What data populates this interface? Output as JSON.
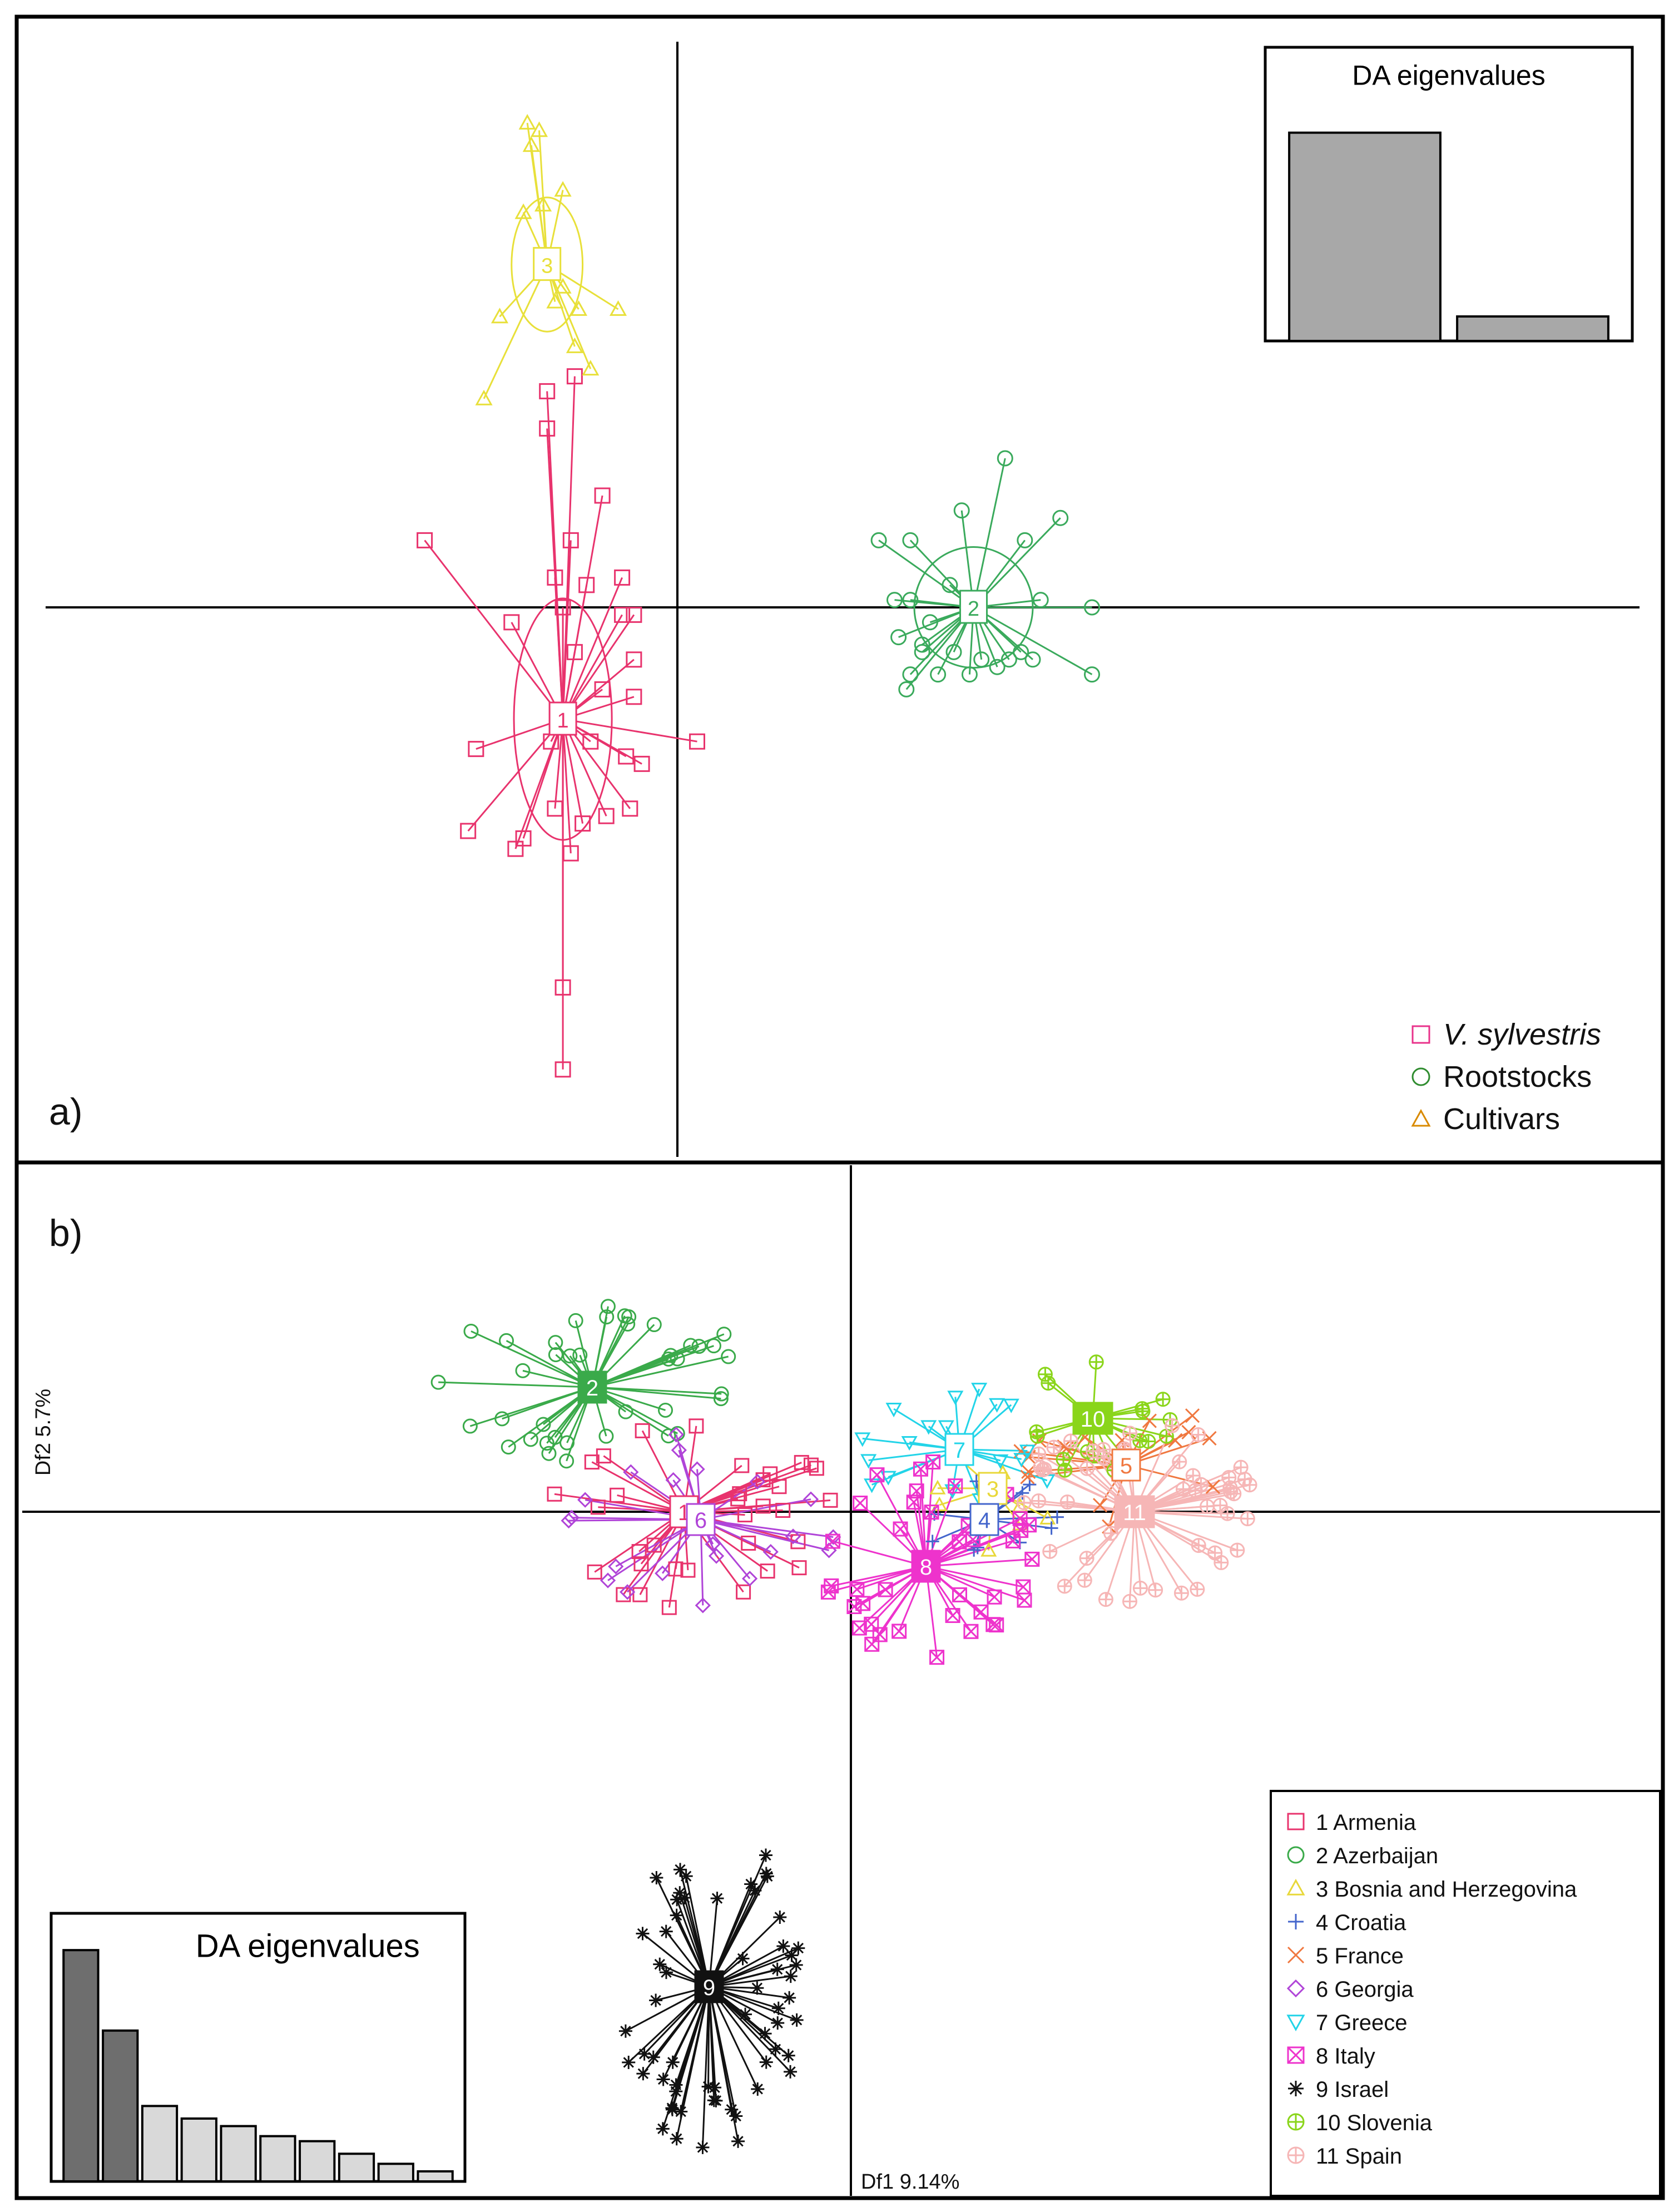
{
  "chart_data": [
    {
      "panel": "a",
      "type": "scatter",
      "panel_label": "a)",
      "xlim": [
        -5,
        5
      ],
      "ylim": [
        -4,
        4
      ],
      "groups": [
        {
          "id": 1,
          "label": "1",
          "name": "V. sylvestris",
          "marker": "square",
          "color": "#e8336d",
          "centroid": [
            -1.45,
            -0.75
          ],
          "ellipse": [
            0.62,
            0.9
          ],
          "points": [
            [
              -3.2,
              0.45
            ],
            [
              -1.65,
              1.2
            ],
            [
              -1.65,
              1.45
            ],
            [
              -1.3,
              1.55
            ],
            [
              -1.35,
              0.45
            ],
            [
              -1.55,
              0.2
            ],
            [
              -1.45,
              0.0
            ],
            [
              -1.15,
              0.15
            ],
            [
              -0.7,
              0.2
            ],
            [
              -0.7,
              -0.05
            ],
            [
              -2.1,
              -0.1
            ],
            [
              -1.3,
              -0.3
            ],
            [
              -0.95,
              -0.55
            ],
            [
              -0.55,
              -0.6
            ],
            [
              -0.55,
              -0.35
            ],
            [
              -0.55,
              -0.05
            ],
            [
              -2.55,
              -0.95
            ],
            [
              -1.6,
              -0.9
            ],
            [
              -1.1,
              -0.9
            ],
            [
              -0.65,
              -1.0
            ],
            [
              -0.45,
              -1.05
            ],
            [
              -2.65,
              -1.5
            ],
            [
              -2.05,
              -1.62
            ],
            [
              -1.55,
              -1.35
            ],
            [
              -1.2,
              -1.45
            ],
            [
              -0.9,
              -1.4
            ],
            [
              -0.6,
              -1.35
            ],
            [
              -1.35,
              -1.65
            ],
            [
              -1.45,
              -2.55
            ],
            [
              -1.45,
              -3.1
            ],
            [
              0.25,
              -0.9
            ],
            [
              -0.95,
              0.75
            ],
            [
              -1.95,
              -1.55
            ]
          ]
        },
        {
          "id": 2,
          "label": "2",
          "name": "Rootstocks",
          "marker": "circle",
          "color": "#3aaa5c",
          "centroid": [
            3.75,
            0.0
          ],
          "ellipse": [
            0.75,
            0.45
          ],
          "points": [
            [
              2.55,
              0.45
            ],
            [
              2.95,
              0.45
            ],
            [
              3.6,
              0.65
            ],
            [
              4.15,
              1.0
            ],
            [
              4.4,
              0.45
            ],
            [
              4.85,
              0.6
            ],
            [
              2.95,
              0.05
            ],
            [
              2.75,
              0.05
            ],
            [
              3.2,
              -0.1
            ],
            [
              4.6,
              0.05
            ],
            [
              5.25,
              0.0
            ],
            [
              2.8,
              -0.2
            ],
            [
              3.1,
              -0.25
            ],
            [
              3.5,
              -0.3
            ],
            [
              3.85,
              -0.35
            ],
            [
              4.35,
              -0.3
            ],
            [
              2.95,
              -0.45
            ],
            [
              3.3,
              -0.45
            ],
            [
              3.7,
              -0.45
            ],
            [
              4.05,
              -0.4
            ],
            [
              4.5,
              -0.35
            ],
            [
              5.25,
              -0.45
            ],
            [
              2.9,
              -0.55
            ],
            [
              3.1,
              -0.3
            ],
            [
              4.2,
              -0.35
            ],
            [
              3.45,
              0.15
            ]
          ]
        },
        {
          "id": 3,
          "label": "3",
          "name": "Cultivars",
          "marker": "triangle",
          "color": "#e8e03a",
          "centroid": [
            -1.65,
            2.3
          ],
          "ellipse": [
            0.45,
            0.5
          ],
          "points": [
            [
              -1.9,
              3.25
            ],
            [
              -1.85,
              3.1
            ],
            [
              -1.75,
              3.2
            ],
            [
              -1.45,
              2.8
            ],
            [
              -1.95,
              2.65
            ],
            [
              -1.7,
              2.7
            ],
            [
              -1.45,
              2.15
            ],
            [
              -1.25,
              2.0
            ],
            [
              -1.55,
              2.05
            ],
            [
              -0.75,
              2.0
            ],
            [
              -1.3,
              1.75
            ],
            [
              -1.1,
              1.6
            ],
            [
              -2.25,
              1.95
            ],
            [
              -2.45,
              1.4
            ]
          ]
        }
      ],
      "inset": {
        "title": "DA eigenvalues",
        "values": [
          0.85,
          0.1
        ]
      },
      "legend": {
        "position": "bottom-right",
        "entries": [
          {
            "label": "V. sylvestris",
            "italic": true,
            "marker": "square",
            "color": "#e8338b"
          },
          {
            "label": "Rootstocks",
            "italic": false,
            "marker": "circle",
            "color": "#2f8c2f"
          },
          {
            "label": "Cultivars",
            "italic": false,
            "marker": "triangle",
            "color": "#d98a00"
          }
        ]
      }
    },
    {
      "panel": "b",
      "type": "scatter",
      "panel_label": "b)",
      "xlabel": "Df1 9.14%",
      "ylabel": "Df2 5.7%",
      "xlim": [
        -6,
        6
      ],
      "ylim": [
        -4.5,
        2.5
      ],
      "groups": [
        {
          "id": 1,
          "label": "1",
          "name": "Armenia",
          "marker": "square",
          "color": "#e8336d",
          "box_fill": false,
          "centroid": [
            -1.0,
            0.0
          ],
          "spread": [
            0.6,
            0.45
          ],
          "n": 34
        },
        {
          "id": 2,
          "label": "2",
          "name": "Azerbaijan",
          "marker": "circle",
          "color": "#3aaa4a",
          "box_fill": true,
          "centroid": [
            -1.55,
            0.8
          ],
          "spread": [
            0.7,
            0.35
          ],
          "n": 40
        },
        {
          "id": 3,
          "label": "3",
          "name": "Bosnia and Herzegovina",
          "marker": "triangle",
          "color": "#e8d83a",
          "box_fill": false,
          "centroid": [
            0.85,
            0.15
          ],
          "spread": [
            0.25,
            0.3
          ],
          "n": 8
        },
        {
          "id": 4,
          "label": "4",
          "name": "Croatia",
          "marker": "plus",
          "color": "#4466cc",
          "box_fill": false,
          "centroid": [
            0.8,
            -0.05
          ],
          "spread": [
            0.3,
            0.25
          ],
          "n": 10
        },
        {
          "id": 5,
          "label": "5",
          "name": "France",
          "marker": "cross",
          "color": "#f07840",
          "box_fill": false,
          "centroid": [
            1.65,
            0.3
          ],
          "spread": [
            0.45,
            0.3
          ],
          "n": 18
        },
        {
          "id": 6,
          "label": "6",
          "name": "Georgia",
          "marker": "diamond",
          "color": "#b044d8",
          "box_fill": false,
          "centroid": [
            -0.9,
            -0.05
          ],
          "spread": [
            0.55,
            0.4
          ],
          "n": 22
        },
        {
          "id": 7,
          "label": "7",
          "name": "Greece",
          "marker": "down-triangle",
          "color": "#22d4e8",
          "box_fill": false,
          "centroid": [
            0.65,
            0.4
          ],
          "spread": [
            0.45,
            0.3
          ],
          "n": 18
        },
        {
          "id": 8,
          "label": "8",
          "name": "Italy",
          "marker": "boxcross",
          "color": "#ee33cc",
          "box_fill": true,
          "centroid": [
            0.45,
            -0.35
          ],
          "spread": [
            0.45,
            0.45
          ],
          "n": 40
        },
        {
          "id": 9,
          "label": "9",
          "name": "Israel",
          "marker": "asterisk",
          "color": "#111111",
          "box_fill": true,
          "centroid": [
            -0.85,
            -3.05
          ],
          "spread": [
            0.4,
            0.7
          ],
          "n": 60
        },
        {
          "id": 10,
          "label": "10",
          "name": "Slovenia",
          "marker": "circleplus",
          "color": "#8ad51a",
          "box_fill": true,
          "centroid": [
            1.45,
            0.6
          ],
          "spread": [
            0.35,
            0.25
          ],
          "n": 18
        },
        {
          "id": 11,
          "label": "11",
          "name": "Spain",
          "marker": "circleplus",
          "color": "#f6b6b6",
          "box_fill": true,
          "centroid": [
            1.7,
            0.0
          ],
          "spread": [
            0.5,
            0.4
          ],
          "n": 50
        }
      ],
      "inset": {
        "title": "DA eigenvalues",
        "values": [
          0.92,
          0.6,
          0.3,
          0.25,
          0.22,
          0.18,
          0.16,
          0.11,
          0.07,
          0.04
        ],
        "dark_count": 2
      },
      "legend": {
        "position": "bottom-right",
        "entries": [
          {
            "label": "1 Armenia",
            "marker": "square",
            "color": "#e8336d"
          },
          {
            "label": "2 Azerbaijan",
            "marker": "circle",
            "color": "#3aaa4a"
          },
          {
            "label": "3 Bosnia and Herzegovina",
            "marker": "triangle",
            "color": "#e8d83a"
          },
          {
            "label": "4 Croatia",
            "marker": "plus",
            "color": "#4466cc"
          },
          {
            "label": "5 France",
            "marker": "cross",
            "color": "#f07840"
          },
          {
            "label": "6 Georgia",
            "marker": "diamond",
            "color": "#b044d8"
          },
          {
            "label": "7 Greece",
            "marker": "down-triangle",
            "color": "#22d4e8"
          },
          {
            "label": "8 Italy",
            "marker": "boxcross",
            "color": "#ee33cc"
          },
          {
            "label": "9 Israel",
            "marker": "asterisk",
            "color": "#111111"
          },
          {
            "label": "10 Slovenia",
            "marker": "circleplus",
            "color": "#8ad51a"
          },
          {
            "label": "11 Spain",
            "marker": "circleplus",
            "color": "#f6b6b6"
          }
        ]
      }
    }
  ]
}
